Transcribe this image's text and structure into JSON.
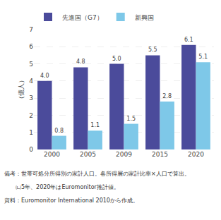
{
  "chart_data": {
    "type": "bar",
    "categories": [
      "2000",
      "2005",
      "2009",
      "2015",
      "2020"
    ],
    "series": [
      {
        "name": "先進国（G7）",
        "color": "#4b4b9b",
        "values": [
          4.0,
          4.8,
          5.0,
          5.5,
          6.1
        ],
        "value_labels": [
          "4.0",
          "4.8",
          "5.0",
          "5.5",
          "6.1"
        ]
      },
      {
        "name": "新興国",
        "color": "#7ec8e8",
        "values": [
          0.8,
          1.1,
          1.5,
          2.8,
          5.1
        ],
        "value_labels": [
          "0.8",
          "1.1",
          "1.5",
          "2.8",
          "5.1"
        ]
      }
    ],
    "ylabel": "（億人）",
    "ylim": [
      0,
      7
    ],
    "yticks": [
      0,
      1,
      2,
      3,
      4,
      5,
      6,
      7
    ],
    "grid": true,
    "legend": "upper left",
    "data_labels": true,
    "annotations": [
      "備考：世帯可処分所得別の家計人口。各所得層の家計比率×人口で算出。",
      "　　㈁5年、2020年はEuromonitor推計値。",
      "資料：Euromonitor International 2010から作成。"
    ]
  }
}
